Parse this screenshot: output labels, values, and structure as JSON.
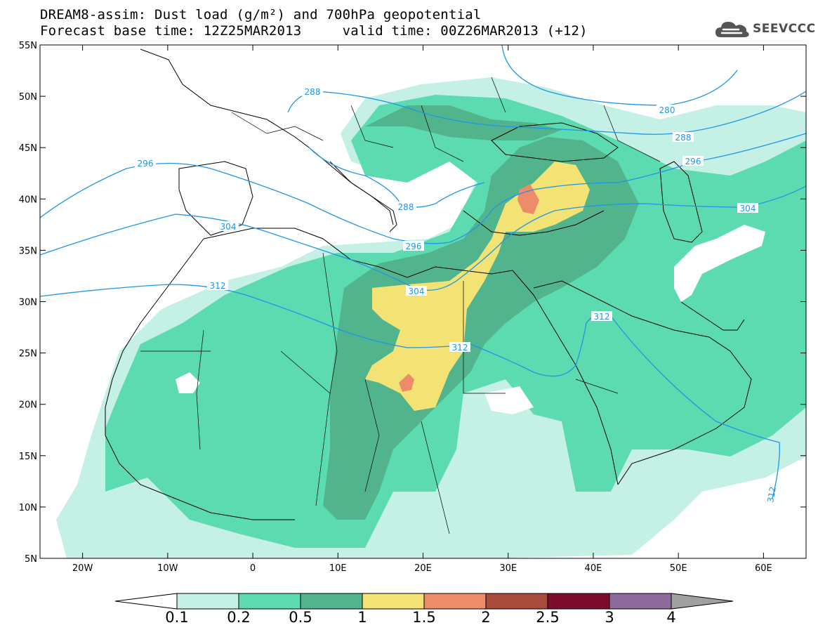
{
  "header": {
    "title_line1": "DREAM8-assim: Dust load (g/m²) and 700hPa geopotential",
    "title_line2": "Forecast base time: 12Z25MAR2013     valid time: 00Z26MAR2013 (+12)"
  },
  "brand": {
    "name": "SEEVCCC",
    "icon": "cloud-icon"
  },
  "map": {
    "lat_ticks": [
      "55N",
      "50N",
      "45N",
      "40N",
      "35N",
      "30N",
      "25N",
      "20N",
      "15N",
      "10N",
      "5N"
    ],
    "lon_ticks": [
      "20W",
      "10W",
      "0",
      "10E",
      "20E",
      "30E",
      "40E",
      "50E",
      "60E"
    ],
    "contour_labels": [
      "288",
      "280",
      "288",
      "296",
      "296",
      "304",
      "304",
      "288",
      "296",
      "312",
      "304",
      "312",
      "312",
      "312"
    ]
  },
  "legend": {
    "values": [
      "0.1",
      "0.2",
      "0.5",
      "1",
      "1.5",
      "2",
      "2.5",
      "3",
      "4"
    ],
    "colors": [
      "#c4f0e6",
      "#5cdab0",
      "#52b48c",
      "#f3e374",
      "#ec8c6a",
      "#a84a3c",
      "#7e0c2c",
      "#8c6a9c"
    ],
    "under_color": "#ffffff",
    "over_color": "#a0a0a0"
  },
  "colors": {
    "contour": "#1f96e6",
    "map_lines": "#000000"
  }
}
